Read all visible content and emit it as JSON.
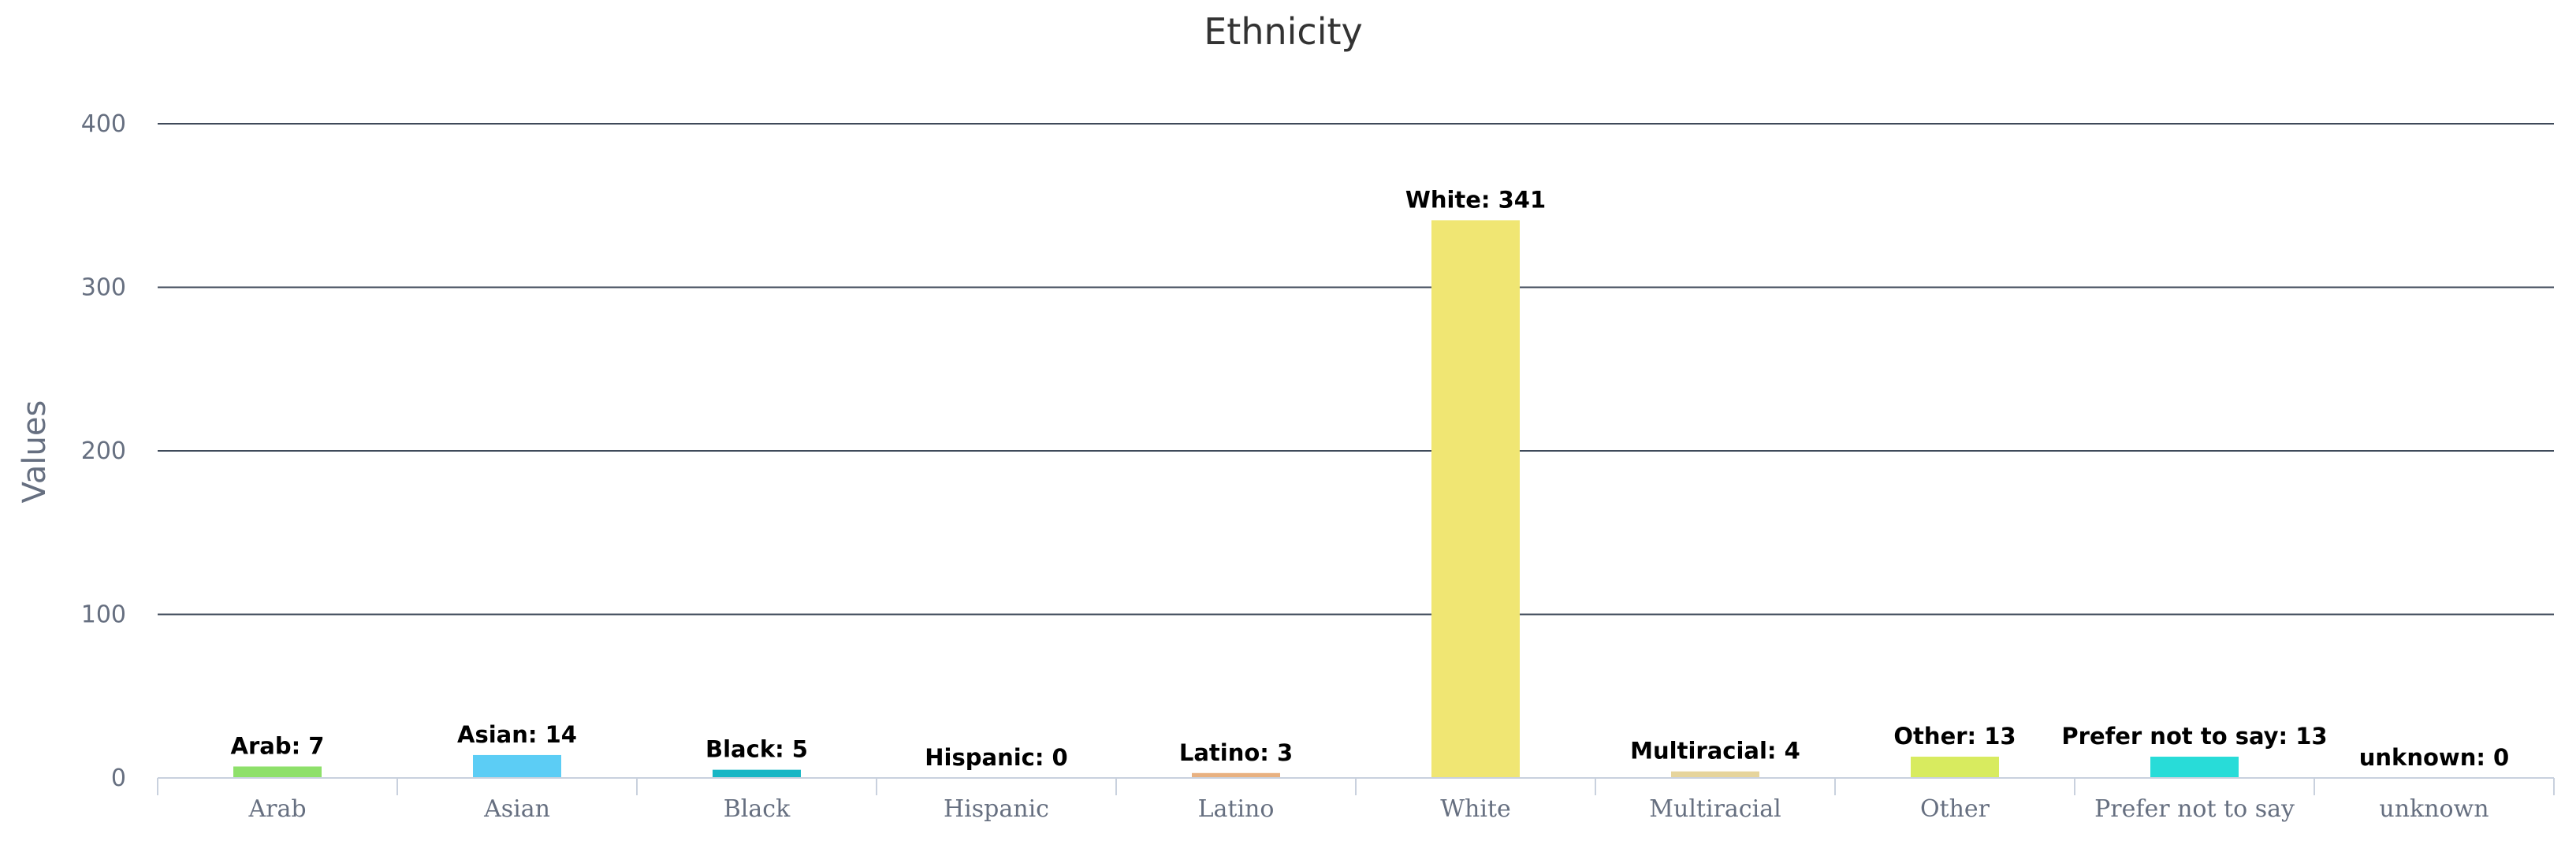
{
  "chart_data": {
    "type": "bar",
    "title": "Ethnicity",
    "xlabel": "",
    "ylabel": "Values",
    "ylim": [
      0,
      400
    ],
    "yticks": [
      0,
      100,
      200,
      300,
      400
    ],
    "grid": true,
    "legend": "none",
    "categories": [
      "Arab",
      "Asian",
      "Black",
      "Hispanic",
      "Latino",
      "White",
      "Multiracial",
      "Other",
      "Prefer not to say",
      "unknown"
    ],
    "values": [
      7,
      14,
      5,
      0,
      3,
      341,
      4,
      13,
      13,
      0
    ],
    "colors": [
      "#8ee06a",
      "#5ccdf5",
      "#17b6c5",
      "#c7a27a",
      "#e8b181",
      "#f0e673",
      "#e6d49c",
      "#d8eb5f",
      "#28dcd8",
      "#a0a0a0"
    ]
  }
}
